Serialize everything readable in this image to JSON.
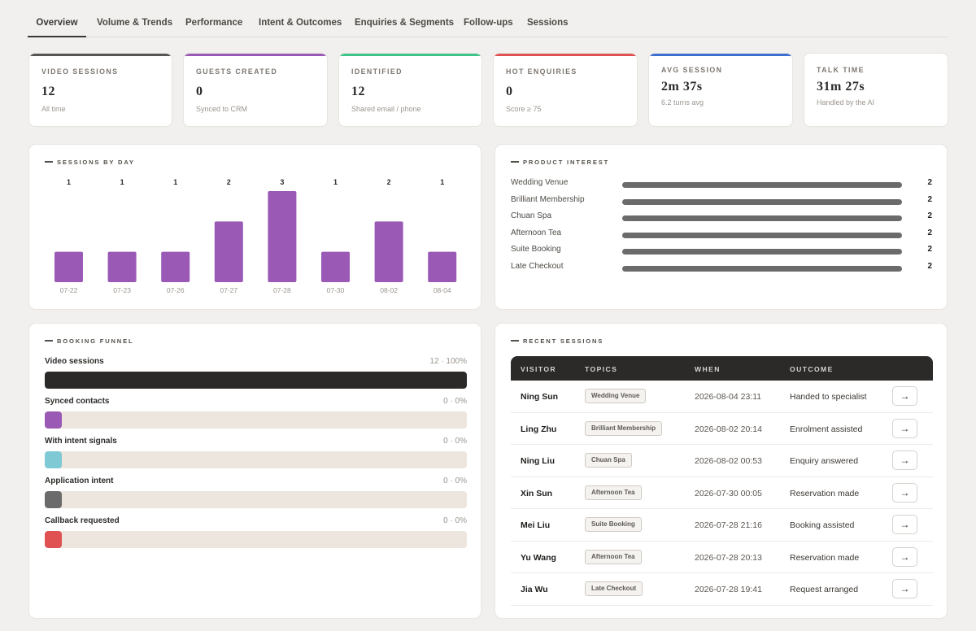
{
  "tabs": [
    {
      "label": "Overview",
      "active": true
    },
    {
      "label": "Volume & Trends"
    },
    {
      "label": "Performance"
    },
    {
      "label": "Intent & Outcomes"
    },
    {
      "label": "Enquiries & Segments"
    },
    {
      "label": "Follow-ups"
    },
    {
      "label": "Sessions"
    }
  ],
  "kpis": [
    {
      "label": "VIDEO SESSIONS",
      "value": "12",
      "sub": "All time",
      "color": "#555555"
    },
    {
      "label": "GUESTS CREATED",
      "value": "0",
      "sub": "Synced to CRM",
      "color": "#9b59b6"
    },
    {
      "label": "IDENTIFIED",
      "value": "12",
      "sub": "Shared email / phone",
      "color": "#3cc48a"
    },
    {
      "label": "HOT ENQUIRIES",
      "value": "0",
      "sub": "Score ≥ 75",
      "color": "#e05252"
    },
    {
      "label": "AVG SESSION",
      "value": "2m 37s",
      "sub": "6.2 turns avg",
      "color": "#3d6fd0"
    },
    {
      "label": "TALK TIME",
      "value": "31m 27s",
      "sub": "Handled by the AI",
      "color": ""
    }
  ],
  "sessions_by_day": {
    "title": "SESSIONS BY DAY",
    "chart_data": {
      "type": "bar",
      "categories": [
        "07-22",
        "07-23",
        "07-26",
        "07-27",
        "07-28",
        "07-30",
        "08-02",
        "08-04"
      ],
      "values": [
        1,
        1,
        1,
        2,
        3,
        1,
        2,
        1
      ],
      "ylim": [
        0,
        3
      ],
      "color": "#9b59b6"
    }
  },
  "product_interest": {
    "title": "PRODUCT INTEREST",
    "items": [
      {
        "name": "Wedding Venue",
        "value": "2"
      },
      {
        "name": "Brilliant Membership",
        "value": "2"
      },
      {
        "name": "Chuan Spa",
        "value": "2"
      },
      {
        "name": "Afternoon Tea",
        "value": "2"
      },
      {
        "name": "Suite Booking",
        "value": "2"
      },
      {
        "name": "Late Checkout",
        "value": "2"
      }
    ]
  },
  "booking_funnel": {
    "title": "BOOKING FUNNEL",
    "stages": [
      {
        "name": "Video sessions",
        "stat": "12 · 100%",
        "fraction": 1.0,
        "color": "#2b2a29"
      },
      {
        "name": "Synced contacts",
        "stat": "0 · 0%",
        "fraction": 0,
        "color": "#9b59b6"
      },
      {
        "name": "With intent signals",
        "stat": "0 · 0%",
        "fraction": 0,
        "color": "#7ec9d3"
      },
      {
        "name": "Application intent",
        "stat": "0 · 0%",
        "fraction": 0,
        "color": "#6b6b6b"
      },
      {
        "name": "Callback requested",
        "stat": "0 · 0%",
        "fraction": 0,
        "color": "#e05252"
      }
    ]
  },
  "recent_sessions": {
    "title": "RECENT SESSIONS",
    "columns": [
      "VISITOR",
      "TOPICS",
      "WHEN",
      "OUTCOME"
    ],
    "rows": [
      {
        "visitor": "Ning Sun",
        "topic": "Wedding Venue",
        "when": "2026-08-04 23:11",
        "outcome": "Handed to specialist",
        "action": "→"
      },
      {
        "visitor": "Ling Zhu",
        "topic": "Brilliant Membership",
        "when": "2026-08-02 20:14",
        "outcome": "Enrolment assisted",
        "action": "→"
      },
      {
        "visitor": "Ning Liu",
        "topic": "Chuan Spa",
        "when": "2026-08-02 00:53",
        "outcome": "Enquiry answered",
        "action": "→"
      },
      {
        "visitor": "Xin Sun",
        "topic": "Afternoon Tea",
        "when": "2026-07-30 00:05",
        "outcome": "Reservation made",
        "action": "→"
      },
      {
        "visitor": "Mei Liu",
        "topic": "Suite Booking",
        "when": "2026-07-28 21:16",
        "outcome": "Booking assisted",
        "action": "→"
      },
      {
        "visitor": "Yu Wang",
        "topic": "Afternoon Tea",
        "when": "2026-07-28 20:13",
        "outcome": "Reservation made",
        "action": "→"
      },
      {
        "visitor": "Jia Wu",
        "topic": "Late Checkout",
        "when": "2026-07-28 19:41",
        "outcome": "Request arranged",
        "action": "→"
      }
    ]
  }
}
